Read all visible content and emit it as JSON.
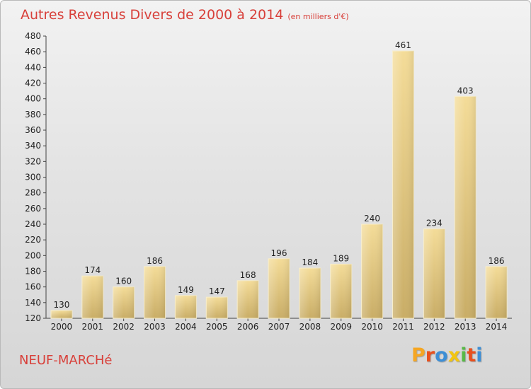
{
  "title": "Autres Revenus Divers de 2000 à 2014",
  "title_unit": "(en milliers d'€)",
  "place": "NEUF-MARCHé",
  "logo": {
    "letters": [
      "P",
      "r",
      "o",
      "x",
      "i",
      "t",
      "i"
    ],
    "colors": [
      "#f5a623",
      "#e8501e",
      "#3d8fd6",
      "#f2c511",
      "#58b947",
      "#e8501e",
      "#3d8fd6"
    ]
  },
  "colors": {
    "title": "#d8403a",
    "bar_light": "#f4dc98",
    "bar_dark": "#c9ad66"
  },
  "chart_data": {
    "type": "bar",
    "categories": [
      "2000",
      "2001",
      "2002",
      "2003",
      "2004",
      "2005",
      "2006",
      "2007",
      "2008",
      "2009",
      "2010",
      "2011",
      "2012",
      "2013",
      "2014"
    ],
    "values": [
      130,
      174,
      160,
      186,
      149,
      147,
      168,
      196,
      184,
      189,
      240,
      461,
      234,
      403,
      186
    ],
    "value_labels": [
      "130",
      "174",
      "160",
      "186",
      "149",
      "147",
      "168",
      "196",
      "184",
      "189",
      "240",
      "461",
      "234",
      "403",
      "186"
    ],
    "y_ticks": [
      "120",
      "140",
      "160",
      "180",
      "200",
      "220",
      "240",
      "260",
      "280",
      "300",
      "320",
      "340",
      "360",
      "380",
      "400",
      "420",
      "440",
      "460",
      "480"
    ],
    "ylim": [
      120,
      480
    ],
    "grid": false,
    "xlabel": "",
    "ylabel": ""
  }
}
